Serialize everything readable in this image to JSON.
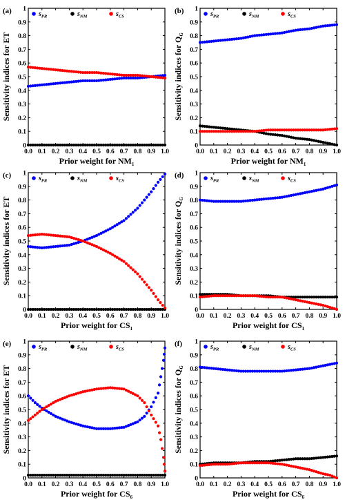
{
  "chart_data": [
    {
      "panel": "(a)",
      "type": "scatter",
      "xlabel": "Prior weight for NM1",
      "ylabel": "Sensitivity indices for ET",
      "xlim": [
        0,
        1
      ],
      "ylim": [
        0,
        1
      ],
      "xticks": [
        "0.0",
        "0.1",
        "0.2",
        "0.3",
        "0.4",
        "0.5",
        "0.6",
        "0.7",
        "0.8",
        "0.9",
        "1.0"
      ],
      "yticks": [
        "0",
        "0.1",
        "0.2",
        "0.3",
        "0.4",
        "0.5",
        "0.6",
        "0.7",
        "0.8",
        "0.9",
        "1"
      ],
      "legend": [
        "S_PR",
        "S_NM",
        "S_CS"
      ],
      "series": [
        {
          "name": "S_PR",
          "color": "#0000ff",
          "x": [
            0,
            0.1,
            0.2,
            0.3,
            0.4,
            0.5,
            0.6,
            0.7,
            0.8,
            0.9,
            1.0
          ],
          "y": [
            0.43,
            0.44,
            0.45,
            0.46,
            0.47,
            0.47,
            0.48,
            0.49,
            0.49,
            0.5,
            0.51
          ]
        },
        {
          "name": "S_NM",
          "color": "#000000",
          "x": [
            0,
            0.1,
            0.2,
            0.3,
            0.4,
            0.5,
            0.6,
            0.7,
            0.8,
            0.9,
            1.0
          ],
          "y": [
            0,
            0,
            0,
            0,
            0,
            0,
            0,
            0,
            0,
            0,
            0
          ]
        },
        {
          "name": "S_CS",
          "color": "#ff0000",
          "x": [
            0,
            0.1,
            0.2,
            0.3,
            0.4,
            0.5,
            0.6,
            0.7,
            0.8,
            0.9,
            1.0
          ],
          "y": [
            0.57,
            0.56,
            0.55,
            0.54,
            0.53,
            0.53,
            0.52,
            0.51,
            0.51,
            0.5,
            0.49
          ]
        }
      ]
    },
    {
      "panel": "(b)",
      "type": "scatter",
      "xlabel": "Prior weight for NM1",
      "ylabel": "Sensitivity indices for QG",
      "xlim": [
        0,
        1
      ],
      "ylim": [
        0,
        1
      ],
      "xticks": [
        "0.0",
        "0.1",
        "0.2",
        "0.3",
        "0.4",
        "0.5",
        "0.6",
        "0.7",
        "0.8",
        "0.9",
        "1.0"
      ],
      "yticks": [
        "0",
        "0.1",
        "0.2",
        "0.3",
        "0.4",
        "0.5",
        "0.6",
        "0.7",
        "0.8",
        "0.9",
        "1"
      ],
      "legend": [
        "S_PR",
        "S_NM",
        "S_CS"
      ],
      "series": [
        {
          "name": "S_PR",
          "color": "#0000ff",
          "x": [
            0,
            0.1,
            0.2,
            0.3,
            0.4,
            0.5,
            0.6,
            0.7,
            0.8,
            0.9,
            1.0
          ],
          "y": [
            0.75,
            0.76,
            0.77,
            0.78,
            0.8,
            0.81,
            0.82,
            0.84,
            0.85,
            0.87,
            0.88
          ]
        },
        {
          "name": "S_NM",
          "color": "#000000",
          "x": [
            0,
            0.1,
            0.2,
            0.3,
            0.4,
            0.5,
            0.6,
            0.7,
            0.8,
            0.9,
            1.0
          ],
          "y": [
            0.14,
            0.13,
            0.12,
            0.11,
            0.1,
            0.08,
            0.07,
            0.05,
            0.04,
            0.02,
            0.0
          ]
        },
        {
          "name": "S_CS",
          "color": "#ff0000",
          "x": [
            0,
            0.1,
            0.2,
            0.3,
            0.4,
            0.5,
            0.6,
            0.7,
            0.8,
            0.9,
            1.0
          ],
          "y": [
            0.1,
            0.1,
            0.1,
            0.1,
            0.1,
            0.11,
            0.11,
            0.11,
            0.11,
            0.11,
            0.12
          ]
        }
      ]
    },
    {
      "panel": "(c)",
      "type": "scatter",
      "xlabel": "Prior weight for CS1",
      "ylabel": "Sensitivity indices for ET",
      "xlim": [
        0,
        1
      ],
      "ylim": [
        0,
        1
      ],
      "xticks": [
        "0.0",
        "0.1",
        "0.2",
        "0.3",
        "0.4",
        "0.5",
        "0.6",
        "0.7",
        "0.8",
        "0.9",
        "1.0"
      ],
      "yticks": [
        "0",
        "0.1",
        "0.2",
        "0.3",
        "0.4",
        "0.5",
        "0.6",
        "0.7",
        "0.8",
        "0.9",
        "1"
      ],
      "legend": [
        "S_PR",
        "S_NM",
        "S_CS"
      ],
      "series": [
        {
          "name": "S_PR",
          "color": "#0000ff",
          "x": [
            0,
            0.1,
            0.2,
            0.3,
            0.4,
            0.5,
            0.6,
            0.7,
            0.8,
            0.9,
            0.95,
            1.0
          ],
          "y": [
            0.46,
            0.45,
            0.46,
            0.47,
            0.5,
            0.54,
            0.59,
            0.65,
            0.74,
            0.86,
            0.93,
            0.99
          ]
        },
        {
          "name": "S_NM",
          "color": "#000000",
          "x": [
            0,
            0.1,
            0.2,
            0.3,
            0.4,
            0.5,
            0.6,
            0.7,
            0.8,
            0.9,
            1.0
          ],
          "y": [
            0,
            0,
            0,
            0,
            0,
            0,
            0,
            0,
            0,
            0,
            0
          ]
        },
        {
          "name": "S_CS",
          "color": "#ff0000",
          "x": [
            0,
            0.1,
            0.2,
            0.3,
            0.4,
            0.5,
            0.6,
            0.7,
            0.8,
            0.9,
            0.95,
            1.0
          ],
          "y": [
            0.54,
            0.55,
            0.54,
            0.53,
            0.5,
            0.46,
            0.41,
            0.35,
            0.26,
            0.14,
            0.07,
            0.01
          ]
        }
      ]
    },
    {
      "panel": "(d)",
      "type": "scatter",
      "xlabel": "Prior weight for CS1",
      "ylabel": "Sensitivity indices for QG",
      "xlim": [
        0,
        1
      ],
      "ylim": [
        0,
        1
      ],
      "xticks": [
        "0.0",
        "0.1",
        "0.2",
        "0.3",
        "0.4",
        "0.5",
        "0.6",
        "0.7",
        "0.8",
        "0.9",
        "1.0"
      ],
      "yticks": [
        "0",
        "0.1",
        "0.2",
        "0.3",
        "0.4",
        "0.5",
        "0.6",
        "0.7",
        "0.8",
        "0.9",
        "1"
      ],
      "legend": [
        "S_PR",
        "S_NM",
        "S_CS"
      ],
      "series": [
        {
          "name": "S_PR",
          "color": "#0000ff",
          "x": [
            0,
            0.1,
            0.2,
            0.3,
            0.4,
            0.5,
            0.6,
            0.7,
            0.8,
            0.9,
            1.0
          ],
          "y": [
            0.8,
            0.79,
            0.79,
            0.79,
            0.8,
            0.81,
            0.82,
            0.84,
            0.86,
            0.88,
            0.91
          ]
        },
        {
          "name": "S_NM",
          "color": "#000000",
          "x": [
            0,
            0.1,
            0.2,
            0.3,
            0.4,
            0.5,
            0.6,
            0.7,
            0.8,
            0.9,
            1.0
          ],
          "y": [
            0.11,
            0.11,
            0.11,
            0.1,
            0.1,
            0.1,
            0.09,
            0.09,
            0.09,
            0.09,
            0.09
          ]
        },
        {
          "name": "S_CS",
          "color": "#ff0000",
          "x": [
            0,
            0.1,
            0.2,
            0.3,
            0.4,
            0.5,
            0.6,
            0.7,
            0.8,
            0.9,
            1.0
          ],
          "y": [
            0.09,
            0.1,
            0.1,
            0.1,
            0.1,
            0.09,
            0.09,
            0.07,
            0.05,
            0.03,
            0.0
          ]
        }
      ]
    },
    {
      "panel": "(e)",
      "type": "scatter",
      "xlabel": "Prior weight for CS6",
      "ylabel": "Sensitivity indices for ET",
      "xlim": [
        0,
        1
      ],
      "ylim": [
        0,
        1
      ],
      "xticks": [
        "0.0",
        "0.1",
        "0.2",
        "0.3",
        "0.4",
        "0.5",
        "0.6",
        "0.7",
        "0.8",
        "0.9",
        "1.0"
      ],
      "yticks": [
        "0",
        "0.1",
        "0.2",
        "0.3",
        "0.4",
        "0.5",
        "0.6",
        "0.7",
        "0.8",
        "0.9",
        "1"
      ],
      "legend": [
        "S_PR",
        "S_NM",
        "S_CS"
      ],
      "series": [
        {
          "name": "S_PR",
          "color": "#0000ff",
          "x": [
            0,
            0.05,
            0.1,
            0.2,
            0.3,
            0.4,
            0.5,
            0.6,
            0.7,
            0.8,
            0.85,
            0.9,
            0.95,
            0.97,
            0.99,
            1.0
          ],
          "y": [
            0.6,
            0.55,
            0.51,
            0.45,
            0.41,
            0.38,
            0.36,
            0.36,
            0.37,
            0.41,
            0.45,
            0.52,
            0.62,
            0.74,
            0.86,
            0.95
          ]
        },
        {
          "name": "S_NM",
          "color": "#000000",
          "x": [
            0,
            0.1,
            0.2,
            0.3,
            0.4,
            0.5,
            0.6,
            0.7,
            0.8,
            0.9,
            1.0
          ],
          "y": [
            0.02,
            0.02,
            0.02,
            0.02,
            0.02,
            0.02,
            0.02,
            0.02,
            0.02,
            0.02,
            0.02
          ]
        },
        {
          "name": "S_CS",
          "color": "#ff0000",
          "x": [
            0,
            0.05,
            0.1,
            0.2,
            0.3,
            0.4,
            0.5,
            0.6,
            0.7,
            0.8,
            0.85,
            0.9,
            0.95,
            0.97,
            0.99,
            1.0
          ],
          "y": [
            0.42,
            0.46,
            0.5,
            0.56,
            0.6,
            0.63,
            0.65,
            0.66,
            0.65,
            0.6,
            0.55,
            0.46,
            0.38,
            0.28,
            0.15,
            0.05
          ]
        }
      ]
    },
    {
      "panel": "(f)",
      "type": "scatter",
      "xlabel": "Prior weight for CS6",
      "ylabel": "Sensitivity indices for QG",
      "xlim": [
        0,
        1
      ],
      "ylim": [
        0,
        1
      ],
      "xticks": [
        "0.0",
        "0.1",
        "0.2",
        "0.3",
        "0.4",
        "0.5",
        "0.6",
        "0.7",
        "0.8",
        "0.9",
        "1.0"
      ],
      "yticks": [
        "0",
        "0.1",
        "0.2",
        "0.3",
        "0.4",
        "0.5",
        "0.6",
        "0.7",
        "0.8",
        "0.9",
        "1"
      ],
      "legend": [
        "S_PR",
        "S_NM",
        "S_CS"
      ],
      "series": [
        {
          "name": "S_PR",
          "color": "#0000ff",
          "x": [
            0,
            0.1,
            0.2,
            0.3,
            0.4,
            0.5,
            0.6,
            0.7,
            0.8,
            0.9,
            1.0
          ],
          "y": [
            0.81,
            0.8,
            0.79,
            0.78,
            0.78,
            0.78,
            0.78,
            0.79,
            0.8,
            0.82,
            0.84
          ]
        },
        {
          "name": "S_NM",
          "color": "#000000",
          "x": [
            0,
            0.1,
            0.2,
            0.3,
            0.4,
            0.5,
            0.6,
            0.7,
            0.8,
            0.9,
            1.0
          ],
          "y": [
            0.1,
            0.11,
            0.11,
            0.11,
            0.12,
            0.12,
            0.13,
            0.14,
            0.14,
            0.15,
            0.16
          ]
        },
        {
          "name": "S_CS",
          "color": "#ff0000",
          "x": [
            0,
            0.1,
            0.2,
            0.3,
            0.4,
            0.5,
            0.6,
            0.7,
            0.8,
            0.9,
            0.95,
            1.0
          ],
          "y": [
            0.09,
            0.1,
            0.1,
            0.11,
            0.11,
            0.11,
            0.1,
            0.08,
            0.06,
            0.03,
            0.02,
            0.0
          ]
        }
      ]
    }
  ]
}
